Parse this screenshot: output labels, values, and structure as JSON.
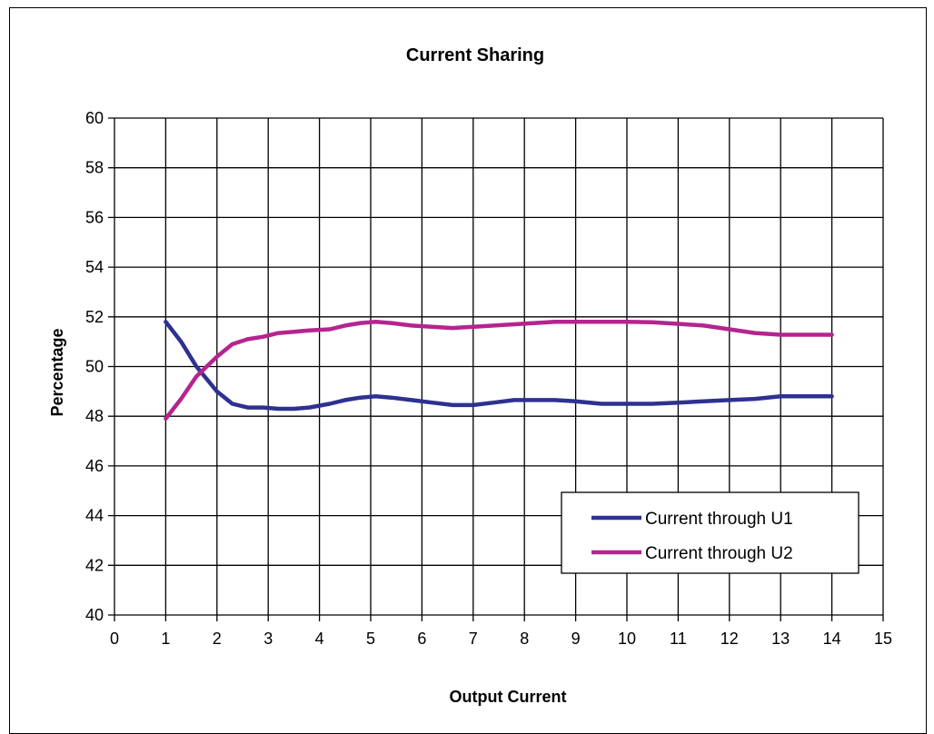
{
  "chart_data": {
    "type": "line",
    "title": "Current Sharing",
    "xlabel": "Output Current",
    "ylabel": "Percentage",
    "xlim": [
      0,
      15
    ],
    "ylim": [
      40,
      60
    ],
    "x_ticks": [
      "0",
      "1",
      "2",
      "3",
      "4",
      "5",
      "6",
      "7",
      "8",
      "9",
      "10",
      "11",
      "12",
      "13",
      "14",
      "15"
    ],
    "y_ticks": [
      "40",
      "42",
      "44",
      "46",
      "48",
      "50",
      "52",
      "54",
      "56",
      "58",
      "60"
    ],
    "grid": true,
    "legend_position": "bottom-right",
    "series": [
      {
        "name": "Current through U1",
        "color": "#2e3192",
        "x": [
          1,
          1.3,
          1.6,
          2,
          2.3,
          2.6,
          2.9,
          3.2,
          3.5,
          3.8,
          4.2,
          4.5,
          4.8,
          5.1,
          5.4,
          5.8,
          6.2,
          6.6,
          7,
          7.4,
          7.8,
          8.2,
          8.6,
          9,
          9.5,
          10,
          10.5,
          11,
          11.5,
          12,
          12.5,
          13,
          13.5,
          14
        ],
        "values": [
          51.8,
          51,
          50,
          49,
          48.5,
          48.35,
          48.35,
          48.3,
          48.3,
          48.35,
          48.5,
          48.65,
          48.75,
          48.8,
          48.75,
          48.65,
          48.55,
          48.45,
          48.45,
          48.55,
          48.65,
          48.65,
          48.65,
          48.6,
          48.5,
          48.5,
          48.5,
          48.55,
          48.6,
          48.65,
          48.7,
          48.8,
          48.8,
          48.8
        ]
      },
      {
        "name": "Current through U2",
        "color": "#b5248f",
        "x": [
          1,
          1.3,
          1.6,
          2,
          2.3,
          2.6,
          2.9,
          3.2,
          3.5,
          3.8,
          4.2,
          4.5,
          4.8,
          5.1,
          5.4,
          5.8,
          6.2,
          6.6,
          7,
          7.4,
          7.8,
          8.2,
          8.6,
          9,
          9.5,
          10,
          10.5,
          11,
          11.5,
          12,
          12.5,
          13,
          13.5,
          14
        ],
        "values": [
          47.9,
          48.7,
          49.6,
          50.4,
          50.9,
          51.1,
          51.2,
          51.35,
          51.4,
          51.45,
          51.5,
          51.65,
          51.75,
          51.8,
          51.75,
          51.65,
          51.6,
          51.55,
          51.6,
          51.65,
          51.7,
          51.75,
          51.8,
          51.8,
          51.8,
          51.8,
          51.78,
          51.72,
          51.65,
          51.5,
          51.35,
          51.28,
          51.28,
          51.28
        ]
      }
    ]
  }
}
